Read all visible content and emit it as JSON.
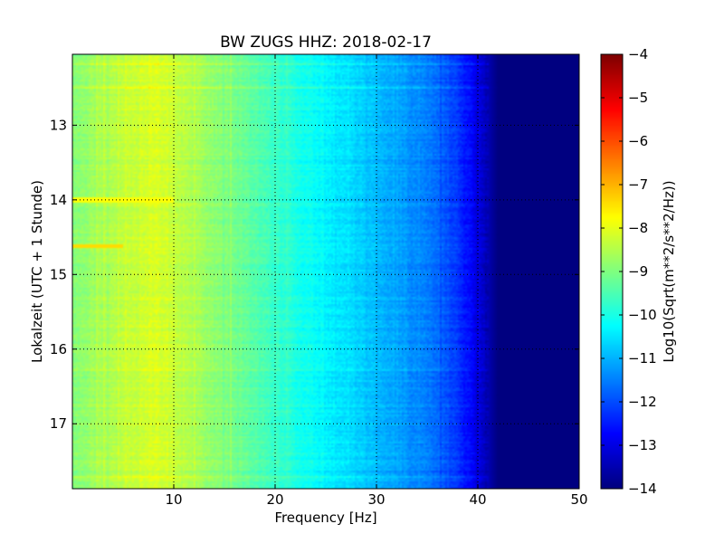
{
  "chart_data": {
    "type": "heatmap",
    "title": "BW ZUGS HHZ: 2018-02-17",
    "xlabel": "Frequency [Hz]",
    "ylabel": "Lokalzeit (UTC + 1 Stunde)",
    "colorbar_label": "Log10(Sqrt(m**2/s**2/Hz))",
    "xlim": [
      0,
      50
    ],
    "ylim": [
      12.05,
      17.87
    ],
    "y_inverted": true,
    "clim": [
      -14,
      -4
    ],
    "colormap": "jet",
    "grid": true,
    "x_ticks": [
      10,
      20,
      30,
      40,
      50
    ],
    "y_ticks": [
      13,
      14,
      15,
      16,
      17
    ],
    "colorbar_ticks": [
      -4,
      -5,
      -6,
      -7,
      -8,
      -9,
      -10,
      -11,
      -12,
      -13,
      -14
    ],
    "x_tick_labels": [
      "10",
      "20",
      "30",
      "40",
      "50"
    ],
    "y_tick_labels": [
      "13",
      "14",
      "15",
      "16",
      "17"
    ],
    "colorbar_tick_labels": [
      "−4",
      "−5",
      "−6",
      "−7",
      "−8",
      "−9",
      "−10",
      "−11",
      "−12",
      "−13",
      "−14"
    ],
    "spectrum_profile": {
      "frequency_hz": [
        0,
        2,
        5,
        8,
        10,
        13,
        16,
        20,
        24,
        28,
        32,
        36,
        38,
        40,
        41,
        42,
        45,
        50
      ],
      "log10_amplitude": [
        -8.9,
        -8.7,
        -8.4,
        -8.1,
        -8.3,
        -8.7,
        -9.1,
        -9.7,
        -10.2,
        -10.7,
        -11.1,
        -11.7,
        -12.2,
        -13.0,
        -13.5,
        -14.0,
        -14.0,
        -14.0
      ]
    },
    "events": [
      {
        "time_h": 14.62,
        "f_max_hz": 5,
        "log10_amplitude": -7.4
      },
      {
        "time_h": 14.0,
        "f_max_hz": 10,
        "log10_amplitude": -7.8
      }
    ]
  }
}
